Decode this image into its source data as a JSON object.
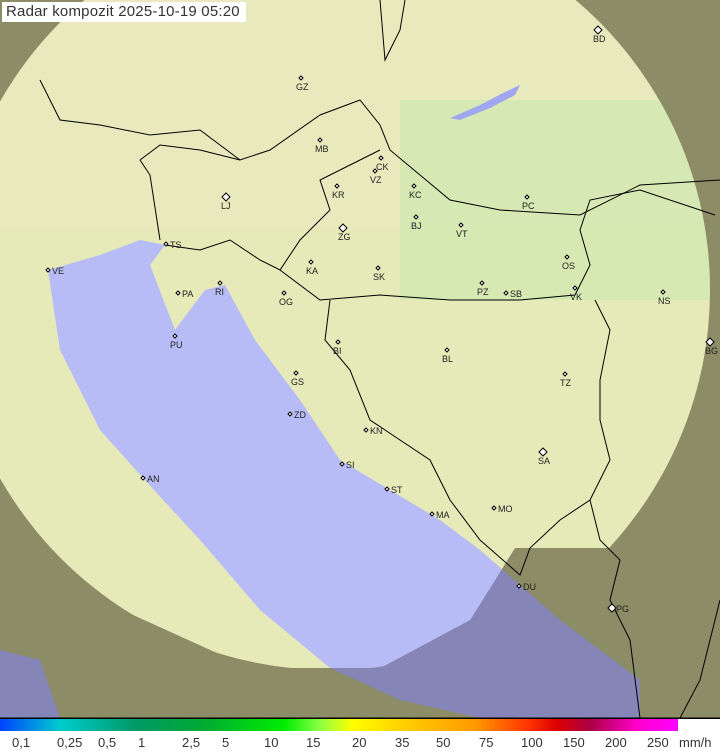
{
  "title": "Radar kompozit  2025-10-19   05:20",
  "legend": {
    "labels": [
      "0,1",
      "0,25",
      "0,5",
      "1",
      "2,5",
      "5",
      "10",
      "15",
      "20",
      "35",
      "50",
      "75",
      "100",
      "150",
      "200",
      "250"
    ],
    "unit": "mm/h"
  },
  "colors": {
    "land_in": "#e6e9b8",
    "land_out": "#8c8c66",
    "sea_in": "#b8bcf6",
    "sea_out": "#8585b8"
  },
  "cities": [
    "BD",
    "GZ",
    "MB",
    "CK",
    "VZ",
    "KR",
    "KC",
    "PC",
    "LJ",
    "ZG",
    "BJ",
    "VT",
    "TS",
    "VE",
    "RI",
    "KA",
    "SK",
    "OS",
    "PA",
    "OG",
    "PZ",
    "SB",
    "VK",
    "NS",
    "PU",
    "BG",
    "BI",
    "BL",
    "GS",
    "TZ",
    "ZD",
    "KN",
    "SA",
    "AN",
    "SI",
    "ST",
    "MO",
    "MA",
    "DU",
    "PG"
  ]
}
